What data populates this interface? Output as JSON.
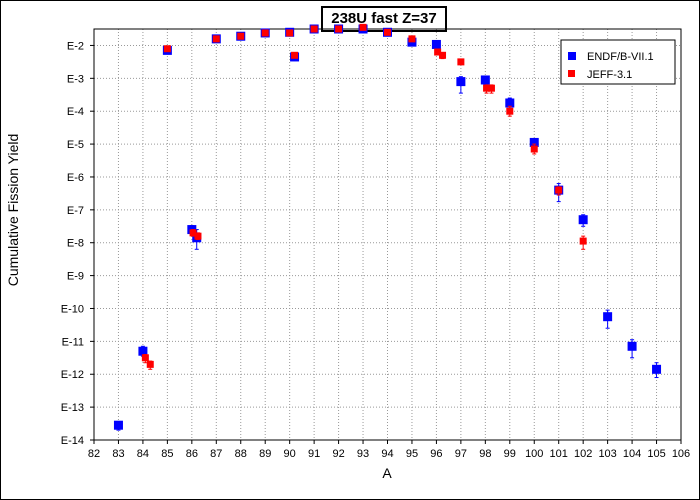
{
  "chart_data": {
    "type": "scatter",
    "title": "238U fast Z=37",
    "xlabel": "A",
    "ylabel": "Cumulative Fission Yield",
    "xlim": [
      82,
      106
    ],
    "ylim_log10": [
      -14,
      -1.5
    ],
    "y_scale": "log",
    "grid": true,
    "legend_position": "top-right",
    "x_ticks": [
      "82",
      "83",
      "84",
      "85",
      "86",
      "87",
      "88",
      "89",
      "90",
      "91",
      "92",
      "93",
      "94",
      "95",
      "96",
      "97",
      "98",
      "99",
      "100",
      "101",
      "102",
      "103",
      "104",
      "105",
      "106"
    ],
    "y_ticks": [
      {
        "label": "E-2",
        "value": -2
      },
      {
        "label": "E-3",
        "value": -3
      },
      {
        "label": "E-4",
        "value": -4
      },
      {
        "label": "E-5",
        "value": -5
      },
      {
        "label": "E-6",
        "value": -6
      },
      {
        "label": "E-7",
        "value": -7
      },
      {
        "label": "E-8",
        "value": -8
      },
      {
        "label": "E-9",
        "value": -9
      },
      {
        "label": "E-10",
        "value": -10
      },
      {
        "label": "E-11",
        "value": -11
      },
      {
        "label": "E-12",
        "value": -12
      },
      {
        "label": "E-13",
        "value": -13
      },
      {
        "label": "E-14",
        "value": -14
      }
    ],
    "series": [
      {
        "name": "ENDF/B-VII.1",
        "color": "#0000ff",
        "marker": "square",
        "points": [
          {
            "x": 83,
            "y": -13.55,
            "err": [
              0.1,
              0.15
            ]
          },
          {
            "x": 84,
            "y": -11.3,
            "err": [
              0.15,
              0.15
            ]
          },
          {
            "x": 85,
            "y": -2.15,
            "err": [
              0.05,
              0.05
            ]
          },
          {
            "x": 86,
            "y": -7.6,
            "err": [
              0.12,
              0.12
            ]
          },
          {
            "x": 86.2,
            "y": -7.85,
            "err": [
              0.25,
              0.35
            ]
          },
          {
            "x": 87,
            "y": -1.8,
            "err": [
              0.05,
              0.05
            ]
          },
          {
            "x": 88,
            "y": -1.72,
            "err": [
              0.05,
              0.05
            ]
          },
          {
            "x": 89,
            "y": -1.62,
            "err": [
              0.05,
              0.05
            ]
          },
          {
            "x": 90,
            "y": -1.6,
            "err": [
              0.05,
              0.05
            ]
          },
          {
            "x": 90.2,
            "y": -2.35,
            "err": [
              0.05,
              0.05
            ]
          },
          {
            "x": 91,
            "y": -1.5,
            "err": [
              0.05,
              0.05
            ]
          },
          {
            "x": 92,
            "y": -1.5,
            "err": [
              0.05,
              0.05
            ]
          },
          {
            "x": 93,
            "y": -1.5,
            "err": [
              0.05,
              0.05
            ]
          },
          {
            "x": 94,
            "y": -1.6,
            "err": [
              0.05,
              0.05
            ]
          },
          {
            "x": 95,
            "y": -1.9,
            "err": [
              0.05,
              0.05
            ]
          },
          {
            "x": 96,
            "y": -1.97,
            "err": [
              0.05,
              0.05
            ]
          },
          {
            "x": 97,
            "y": -3.1,
            "err": [
              0.15,
              0.35
            ]
          },
          {
            "x": 98,
            "y": -3.05,
            "err": [
              0.1,
              0.15
            ]
          },
          {
            "x": 99,
            "y": -3.75,
            "err": [
              0.15,
              0.2
            ]
          },
          {
            "x": 100,
            "y": -4.95,
            "err": [
              0.1,
              0.15
            ]
          },
          {
            "x": 101,
            "y": -6.4,
            "err": [
              0.2,
              0.35
            ]
          },
          {
            "x": 102,
            "y": -7.3,
            "err": [
              0.15,
              0.2
            ]
          },
          {
            "x": 103,
            "y": -10.25,
            "err": [
              0.2,
              0.35
            ]
          },
          {
            "x": 104,
            "y": -11.15,
            "err": [
              0.2,
              0.35
            ]
          },
          {
            "x": 105,
            "y": -11.85,
            "err": [
              0.2,
              0.25
            ]
          }
        ]
      },
      {
        "name": "JEFF-3.1",
        "color": "#ff0000",
        "marker": "square",
        "points": [
          {
            "x": 84.1,
            "y": -11.5,
            "err": [
              0.1,
              0.15
            ]
          },
          {
            "x": 84.3,
            "y": -11.7,
            "err": [
              0.1,
              0.15
            ]
          },
          {
            "x": 85,
            "y": -2.1,
            "err": [
              0.05,
              0.05
            ]
          },
          {
            "x": 86.05,
            "y": -7.7,
            "err": [
              0.1,
              0.1
            ]
          },
          {
            "x": 86.25,
            "y": -7.8,
            "err": [
              0.1,
              0.1
            ]
          },
          {
            "x": 87,
            "y": -1.8,
            "err": [
              0.05,
              0.05
            ]
          },
          {
            "x": 88,
            "y": -1.72,
            "err": [
              0.05,
              0.05
            ]
          },
          {
            "x": 89,
            "y": -1.62,
            "err": [
              0.05,
              0.05
            ]
          },
          {
            "x": 90,
            "y": -1.62,
            "err": [
              0.05,
              0.05
            ]
          },
          {
            "x": 90.2,
            "y": -2.3,
            "err": [
              0.05,
              0.05
            ]
          },
          {
            "x": 91,
            "y": -1.5,
            "err": [
              0.05,
              0.05
            ]
          },
          {
            "x": 92,
            "y": -1.5,
            "err": [
              0.05,
              0.05
            ]
          },
          {
            "x": 93,
            "y": -1.45,
            "err": [
              0.05,
              0.05
            ]
          },
          {
            "x": 94,
            "y": -1.6,
            "err": [
              0.05,
              0.05
            ]
          },
          {
            "x": 95,
            "y": -1.8,
            "err": [
              0.05,
              0.05
            ]
          },
          {
            "x": 96.05,
            "y": -2.2,
            "err": [
              0.05,
              0.05
            ]
          },
          {
            "x": 96.25,
            "y": -2.3,
            "err": [
              0.05,
              0.1
            ]
          },
          {
            "x": 97,
            "y": -2.5,
            "err": [
              0.05,
              0.05
            ]
          },
          {
            "x": 98.05,
            "y": -3.3,
            "err": [
              0.1,
              0.15
            ]
          },
          {
            "x": 98.25,
            "y": -3.3,
            "err": [
              0.1,
              0.15
            ]
          },
          {
            "x": 99,
            "y": -4.0,
            "err": [
              0.15,
              0.15
            ]
          },
          {
            "x": 100,
            "y": -5.15,
            "err": [
              0.15,
              0.15
            ]
          },
          {
            "x": 101,
            "y": -6.4,
            "err": [
              0.1,
              0.15
            ]
          },
          {
            "x": 102,
            "y": -7.95,
            "err": [
              0.15,
              0.25
            ]
          }
        ]
      }
    ]
  }
}
